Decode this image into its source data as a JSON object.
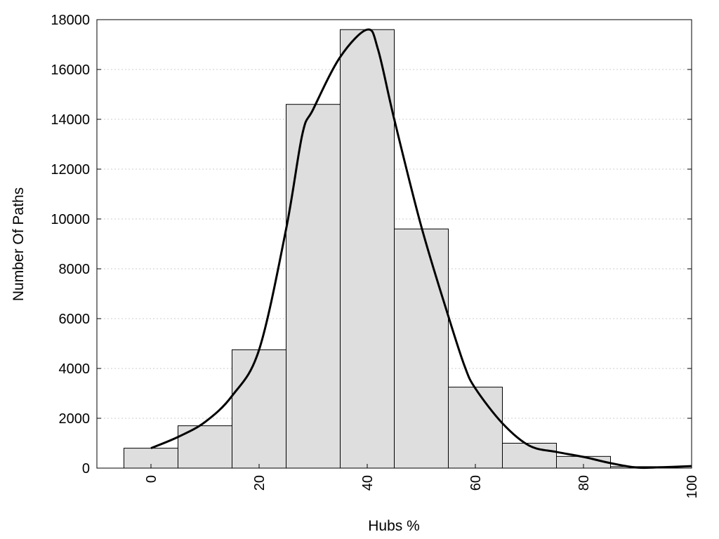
{
  "chart_data": {
    "type": "bar",
    "xlabel": "Hubs %",
    "ylabel": "Number Of Paths",
    "xlim": [
      -10,
      100
    ],
    "ylim": [
      0,
      18000
    ],
    "x_ticks": [
      0,
      20,
      40,
      60,
      80,
      100
    ],
    "y_ticks": [
      0,
      2000,
      4000,
      6000,
      8000,
      10000,
      12000,
      14000,
      16000,
      18000
    ],
    "grid": "horizontal dotted",
    "bin_width": 10,
    "bins": [
      {
        "center": 0,
        "value": 800
      },
      {
        "center": 10,
        "value": 1700
      },
      {
        "center": 20,
        "value": 4750
      },
      {
        "center": 30,
        "value": 14600
      },
      {
        "center": 40,
        "value": 17600
      },
      {
        "center": 50,
        "value": 9600
      },
      {
        "center": 60,
        "value": 3250
      },
      {
        "center": 70,
        "value": 1000
      },
      {
        "center": 80,
        "value": 470
      },
      {
        "center": 90,
        "value": 60
      }
    ],
    "density_curve": {
      "x": [
        0,
        5,
        10,
        15,
        20,
        25,
        28,
        30,
        35,
        40,
        42,
        45,
        50,
        55,
        58,
        60,
        65,
        70,
        75,
        80,
        85,
        90,
        95,
        100
      ],
      "y": [
        800,
        1250,
        1850,
        2900,
        4750,
        9600,
        13400,
        14400,
        16500,
        17600,
        16800,
        14000,
        9700,
        6100,
        4100,
        3200,
        1800,
        900,
        650,
        450,
        200,
        20,
        40,
        80
      ]
    },
    "colors": {
      "bar_fill": "#dedede",
      "bar_stroke": "#000000",
      "curve": "#000000",
      "grid": "#cccccc"
    }
  }
}
